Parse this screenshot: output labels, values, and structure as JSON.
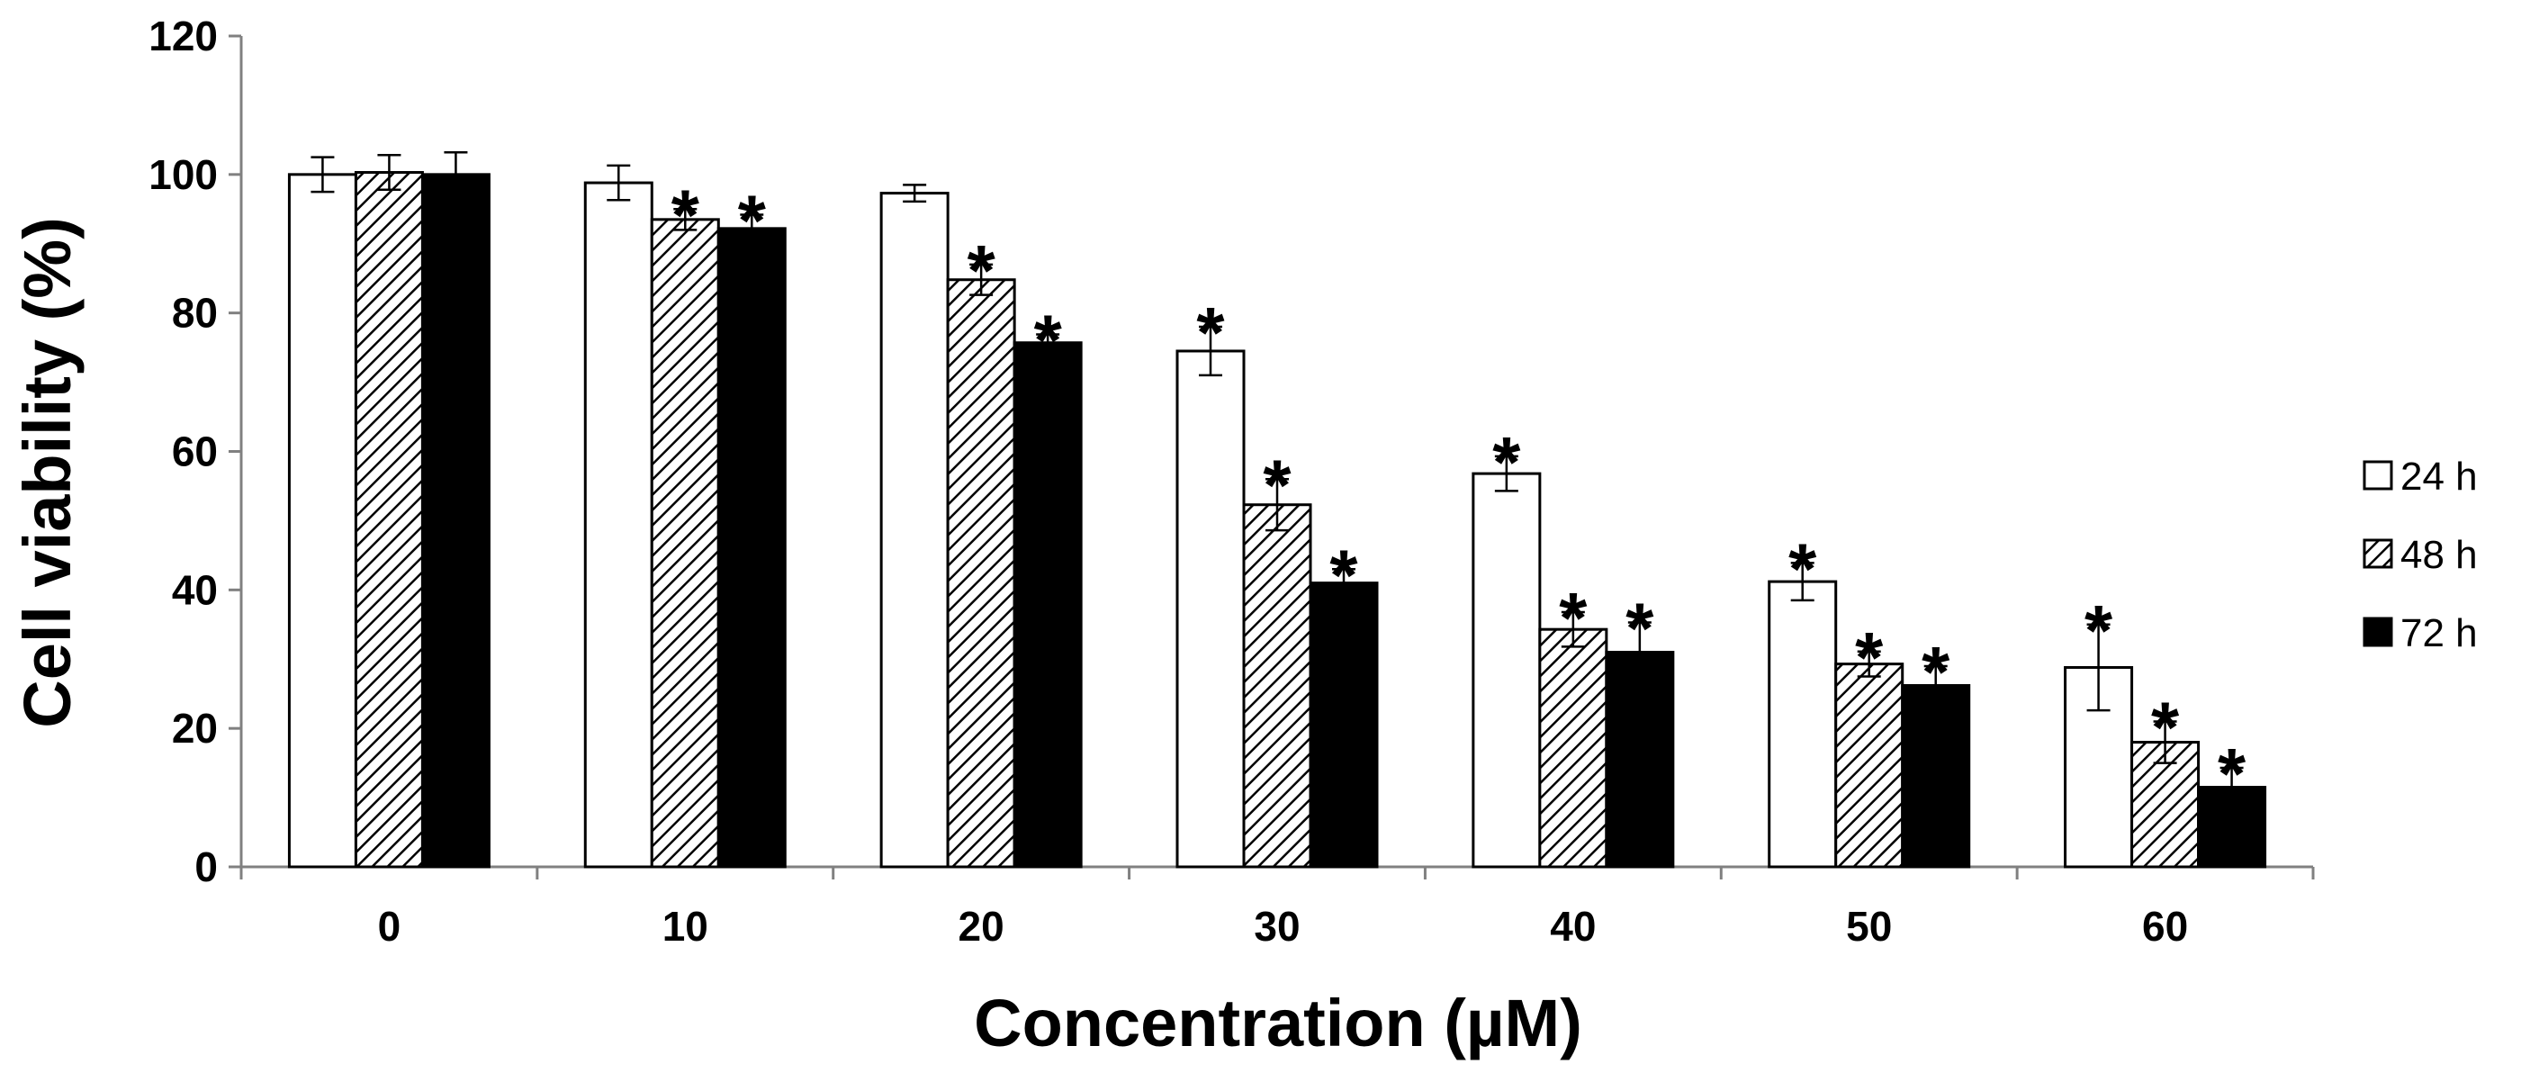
{
  "chart_data": {
    "type": "bar",
    "title": "",
    "xlabel": "Concentration (µM)",
    "ylabel": "Cell viability (%)",
    "ylim": [
      0,
      120
    ],
    "yticks": [
      0,
      20,
      40,
      60,
      80,
      100,
      120
    ],
    "categories": [
      "0",
      "10",
      "20",
      "30",
      "40",
      "50",
      "60"
    ],
    "series": [
      {
        "name": "24 h",
        "fill": "white",
        "values": [
          100,
          98.8,
          97.3,
          74.5,
          56.8,
          41.2,
          28.8
        ],
        "errors": [
          2.5,
          2.5,
          1.2,
          3.5,
          2.5,
          2.7,
          6.2
        ],
        "significant": [
          false,
          false,
          false,
          true,
          true,
          true,
          true
        ]
      },
      {
        "name": "48 h",
        "fill": "hatched",
        "values": [
          100.3,
          93.5,
          84.8,
          52.3,
          34.3,
          29.3,
          18.0
        ],
        "errors": [
          2.5,
          1.5,
          2.2,
          3.7,
          2.5,
          1.8,
          3.0
        ],
        "significant": [
          false,
          true,
          true,
          true,
          true,
          true,
          true
        ]
      },
      {
        "name": "72 h",
        "fill": "black",
        "values": [
          100.0,
          92.2,
          75.7,
          41.0,
          31.0,
          26.2,
          11.5
        ],
        "errors": [
          3.2,
          2.0,
          1.2,
          2.0,
          4.3,
          2.8,
          2.8
        ],
        "significant": [
          false,
          true,
          true,
          true,
          true,
          true,
          true
        ]
      }
    ],
    "significance_marker": "*",
    "legend_position": "right"
  },
  "colors": {
    "axis": "#808080",
    "bar_stroke": "#000000",
    "hatch": "#000000"
  }
}
